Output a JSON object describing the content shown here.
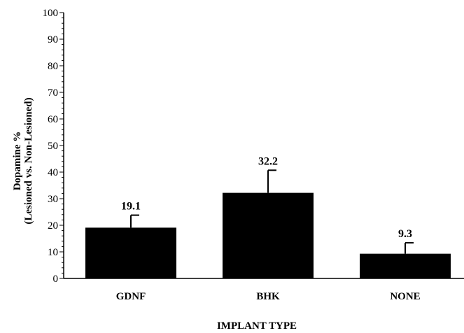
{
  "chart_data": {
    "type": "bar",
    "categories": [
      "GDNF",
      "BHK",
      "NONE"
    ],
    "values": [
      19.1,
      32.2,
      9.3
    ],
    "error_upper": [
      23.8,
      40.7,
      13.4
    ],
    "data_labels": [
      "19.1",
      "32.2",
      "9.3"
    ],
    "xlabel": "IMPLANT TYPE",
    "ylabel_line1": "Dopamine %",
    "ylabel_line2": "(Lesioned vs. Non-Lesioned)",
    "ylim": [
      0,
      100
    ],
    "yticks": [
      0,
      10,
      20,
      30,
      40,
      50,
      60,
      70,
      80,
      90,
      100
    ],
    "grid": false,
    "bar_color": "#000000"
  }
}
